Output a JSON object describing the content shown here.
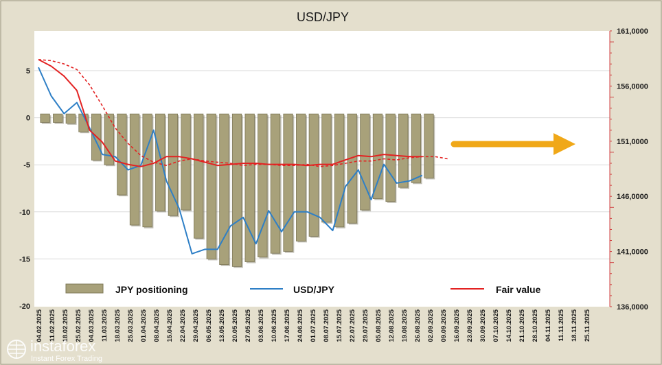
{
  "chart_data": {
    "type": "bar+line",
    "title": "USD/JPY",
    "x_dates": [
      "04.02.2025",
      "11.02.2025",
      "18.02.2025",
      "25.02.2025",
      "04.03.2025",
      "11.03.2025",
      "18.03.2025",
      "25.03.2025",
      "01.04.2025",
      "08.04.2025",
      "15.04.2025",
      "22.04.2025",
      "29.04.2025",
      "06.05.2025",
      "13.05.2025",
      "20.05.2025",
      "27.05.2025",
      "03.06.2025",
      "10.06.2025",
      "17.06.2025",
      "24.06.2025",
      "01.07.2025",
      "08.07.2025",
      "15.07.2025",
      "22.07.2025",
      "29.07.2025",
      "05.08.2025",
      "12.08.2025",
      "19.08.2025",
      "26.08.2025",
      "02.09.2025",
      "09.09.2025",
      "16.09.2025",
      "23.09.2025",
      "30.09.2025",
      "07.10.2025",
      "14.10.2025",
      "21.10.2025",
      "28.10.2025",
      "04.11.2025",
      "11.11.2025",
      "18.11.2025",
      "25.11.2025"
    ],
    "x_tick_labels": [
      "04.02.2025",
      "11.02.2025",
      "18.02.2025",
      "25.02.2025",
      "04.03.2025",
      "11.03.2025",
      "18.03.2025",
      "25.03.2025",
      "01.04.2025",
      "08.04.2025",
      "15.04.2025",
      "22.04.2025",
      "29.04.2025",
      "06.05.2025",
      "13.05.2025",
      "20.05.2025",
      "27.05.2025",
      "03.06.2025",
      "10.06.2025",
      "17.06.2025",
      "24.06.2025",
      "01.07.2025",
      "08.07.2025",
      "15.07.2025",
      "22.07.2025",
      "29.07.2025",
      "05.08.2025",
      "12.08.2025",
      "19.08.2025",
      "26.08.2025",
      "02.09.2025",
      "09.09.2025",
      "16.09.2025",
      "23.09.2025",
      "30.09.2025",
      "07.10.2025",
      "14.10.2025",
      "21.10.2025",
      "28.10.2025",
      "04.11.2025",
      "11.11.2025",
      "18.11.2025",
      "25.11.2025"
    ],
    "y_left": {
      "ticks": [
        "5",
        "0",
        "-5",
        "-10",
        "-15",
        "-20"
      ],
      "range": [
        -20,
        5
      ]
    },
    "y_right": {
      "ticks": [
        "161,0000",
        "156,0000",
        "151,0000",
        "146,0000",
        "141,0000",
        "136,0000"
      ],
      "range": [
        136,
        161
      ]
    },
    "series": [
      {
        "name": "JPY positioning",
        "kind": "bar",
        "axis": "left",
        "color": "#a8a17a",
        "values": [
          -0.5,
          -0.5,
          -0.6,
          -1.5,
          -4.5,
          -5.0,
          -8.2,
          -11.4,
          -11.6,
          -9.9,
          -10.4,
          -9.8,
          -12.8,
          -15.0,
          -15.6,
          -15.8,
          -15.3,
          -14.8,
          -14.4,
          -14.2,
          -13.1,
          -12.6,
          -11.1,
          -11.6,
          -11.2,
          -9.8,
          -8.6,
          -8.9,
          -7.4,
          -6.9,
          -6.4
        ]
      },
      {
        "name": "USD/JPY",
        "kind": "line",
        "axis": "right",
        "color": "#2e7fc6",
        "values": [
          157.7,
          155.1,
          153.5,
          154.5,
          152.2,
          149.8,
          149.6,
          148.4,
          148.8,
          152.0,
          147.4,
          144.9,
          140.8,
          141.2,
          141.2,
          143.3,
          144.1,
          141.7,
          144.7,
          142.8,
          144.6,
          144.6,
          144.1,
          142.9,
          146.9,
          148.4,
          145.7,
          148.9,
          147.2,
          147.4,
          147.9
        ]
      },
      {
        "name": "Fair value",
        "kind": "line",
        "axis": "right",
        "color": "#e32222",
        "values": [
          158.4,
          157.8,
          156.9,
          155.6,
          152.0,
          150.9,
          149.2,
          148.9,
          148.7,
          149.0,
          149.6,
          149.6,
          149.4,
          149.1,
          148.8,
          148.9,
          149.0,
          149.0,
          148.9,
          148.9,
          148.9,
          148.8,
          148.9,
          148.9,
          149.3,
          149.7,
          149.6,
          149.8,
          149.7,
          149.6,
          149.6
        ]
      },
      {
        "name": "Fair value",
        "kind": "line-dashed",
        "axis": "right",
        "color": "#e32222",
        "values": [
          158.4,
          158.3,
          158.0,
          157.5,
          156.1,
          154.2,
          152.2,
          150.8,
          149.7,
          149.1,
          148.8,
          149.2,
          149.4,
          149.2,
          149.1,
          149.0,
          148.8,
          148.9,
          148.9,
          148.8,
          148.8,
          148.9,
          148.7,
          148.8,
          149.0,
          149.2,
          149.2,
          149.4,
          149.3,
          149.5,
          149.6,
          149.6,
          149.4
        ]
      }
    ],
    "arrow_color": "#f0a818",
    "legend_position": "bottom",
    "grid": true
  },
  "watermark": {
    "brand": "instaforex",
    "tagline": "Instant Forex Trading"
  }
}
